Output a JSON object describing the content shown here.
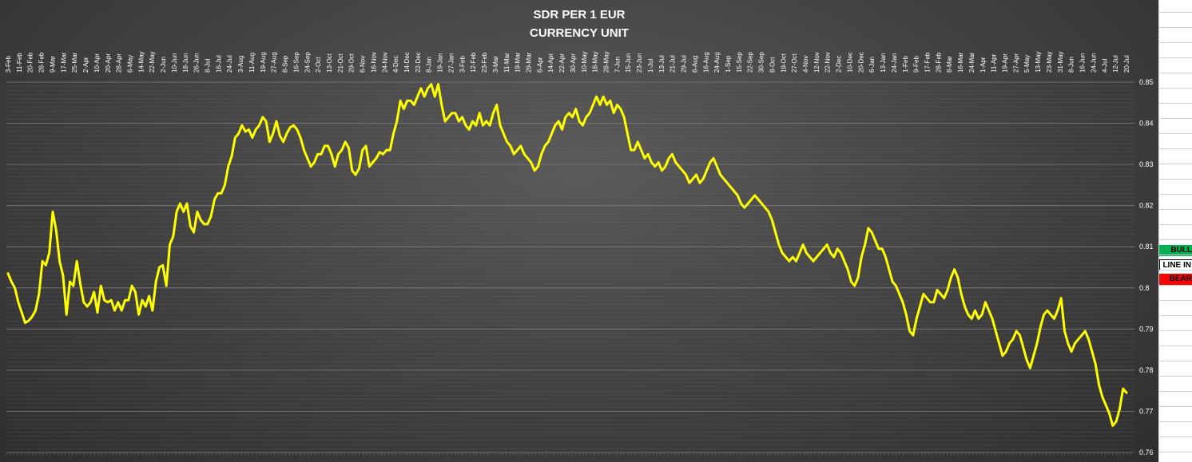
{
  "chart_data": {
    "type": "line",
    "title": "SDR PER 1 EUR",
    "subtitle": "CURRENCY UNIT",
    "xlabel": "",
    "ylabel": "",
    "ylim": [
      0.76,
      0.85
    ],
    "y_ticks": [
      "0.85",
      "0.84",
      "0.83",
      "0.82",
      "0.81",
      "0.8",
      "0.79",
      "0.78",
      "0.77",
      "0.76"
    ],
    "x_tick_labels": [
      "3-Feb",
      "11-Feb",
      "20-Feb",
      "28-Feb",
      "9-Mar",
      "17-Mar",
      "25-Mar",
      "2-Apr",
      "10-Apr",
      "20-Apr",
      "28-Apr",
      "6-May",
      "14-May",
      "22-May",
      "2-Jun",
      "10-Jun",
      "18-Jun",
      "26-Jun",
      "8-Jul",
      "16-Jul",
      "24-Jul",
      "3-Aug",
      "11-Aug",
      "19-Aug",
      "27-Aug",
      "8-Sep",
      "16-Sep",
      "24-Sep",
      "2-Oct",
      "13-Oct",
      "21-Oct",
      "29-Oct",
      "6-Nov",
      "16-Nov",
      "24-Nov",
      "4-Dec",
      "14-Dec",
      "22-Dec",
      "8-Jan",
      "19-Jan",
      "27-Jan",
      "3-Feb",
      "12-Feb",
      "23-Feb",
      "3-Mar",
      "11-Mar",
      "19-Mar",
      "29-Mar",
      "6-Apr",
      "14-Apr",
      "22-Apr",
      "30-Apr",
      "10-May",
      "18-May",
      "28-May",
      "7-Jun",
      "15-Jun",
      "23-Jun",
      "1-Jul",
      "13-Jul",
      "21-Jul",
      "29-Jul",
      "6-Aug",
      "16-Aug",
      "24-Aug",
      "1-Sep",
      "15-Sep",
      "22-Sep",
      "30-Sep",
      "8-Oct",
      "19-Oct",
      "27-Oct",
      "4-Nov",
      "12-Nov",
      "22-Nov",
      "2-Dec",
      "10-Dec",
      "20-Dec",
      "6-Jan",
      "13-Jan",
      "24-Jan",
      "1-Feb",
      "9-Feb",
      "17-Feb",
      "28-Feb",
      "8-Mar",
      "16-Mar",
      "24-Mar",
      "1-Apr",
      "11-Apr",
      "19-Apr",
      "27-Apr",
      "5-May",
      "13-May",
      "23-May",
      "31-May",
      "8-Jun",
      "16-Jun",
      "24-Jun",
      "4-Jul",
      "12-Jul",
      "20-Jul"
    ],
    "grid": true,
    "series": [
      {
        "color": "#ffff00",
        "values": [
          0.8035,
          0.8015,
          0.8,
          0.7965,
          0.794,
          0.7915,
          0.792,
          0.793,
          0.7945,
          0.7985,
          0.8065,
          0.8055,
          0.8085,
          0.8185,
          0.814,
          0.8065,
          0.803,
          0.7935,
          0.8015,
          0.8005,
          0.8065,
          0.801,
          0.7965,
          0.7955,
          0.7965,
          0.799,
          0.794,
          0.8005,
          0.797,
          0.7965,
          0.797,
          0.7945,
          0.7965,
          0.7945,
          0.797,
          0.797,
          0.8005,
          0.799,
          0.7935,
          0.797,
          0.7955,
          0.798,
          0.7945,
          0.8015,
          0.805,
          0.8055,
          0.8005,
          0.8105,
          0.8125,
          0.8185,
          0.8205,
          0.8185,
          0.8205,
          0.815,
          0.8135,
          0.8185,
          0.8165,
          0.8155,
          0.8155,
          0.8175,
          0.8215,
          0.823,
          0.823,
          0.825,
          0.8295,
          0.832,
          0.8365,
          0.8375,
          0.8395,
          0.838,
          0.8385,
          0.8365,
          0.8385,
          0.8395,
          0.8415,
          0.8405,
          0.8355,
          0.8375,
          0.8405,
          0.837,
          0.8355,
          0.8375,
          0.839,
          0.8395,
          0.8385,
          0.8365,
          0.8335,
          0.8315,
          0.8295,
          0.8305,
          0.8325,
          0.8325,
          0.8345,
          0.8345,
          0.8325,
          0.8295,
          0.8325,
          0.8335,
          0.8355,
          0.834,
          0.8285,
          0.8275,
          0.829,
          0.8335,
          0.8345,
          0.8295,
          0.8305,
          0.8315,
          0.833,
          0.8325,
          0.8335,
          0.8335,
          0.8375,
          0.8405,
          0.8455,
          0.8435,
          0.8455,
          0.8455,
          0.8445,
          0.8465,
          0.8485,
          0.8465,
          0.8485,
          0.8495,
          0.8465,
          0.8495,
          0.8445,
          0.8405,
          0.8415,
          0.8425,
          0.8425,
          0.8405,
          0.8415,
          0.8395,
          0.8385,
          0.8405,
          0.8395,
          0.8425,
          0.8395,
          0.8405,
          0.8395,
          0.8425,
          0.8445,
          0.8395,
          0.8375,
          0.8355,
          0.8345,
          0.8325,
          0.8335,
          0.8345,
          0.8325,
          0.8315,
          0.8305,
          0.8285,
          0.8295,
          0.8325,
          0.8345,
          0.8355,
          0.8375,
          0.8395,
          0.8405,
          0.8385,
          0.8415,
          0.8425,
          0.8415,
          0.8435,
          0.8405,
          0.8395,
          0.8415,
          0.8425,
          0.8445,
          0.8465,
          0.8445,
          0.8465,
          0.8445,
          0.8455,
          0.8425,
          0.8445,
          0.8435,
          0.8415,
          0.8375,
          0.8335,
          0.8335,
          0.8355,
          0.8335,
          0.8315,
          0.8325,
          0.8305,
          0.8295,
          0.8305,
          0.8285,
          0.8295,
          0.8315,
          0.8325,
          0.8305,
          0.8295,
          0.8285,
          0.8275,
          0.8255,
          0.8265,
          0.8275,
          0.8255,
          0.8265,
          0.8285,
          0.8305,
          0.8315,
          0.8295,
          0.8275,
          0.8265,
          0.8255,
          0.8245,
          0.8235,
          0.8225,
          0.8205,
          0.8195,
          0.8205,
          0.8215,
          0.8225,
          0.8215,
          0.8205,
          0.8195,
          0.8185,
          0.8165,
          0.8135,
          0.8105,
          0.8085,
          0.8075,
          0.8065,
          0.8075,
          0.8065,
          0.8085,
          0.8105,
          0.8085,
          0.8075,
          0.8065,
          0.8075,
          0.8085,
          0.8095,
          0.8105,
          0.8085,
          0.8075,
          0.8095,
          0.8085,
          0.8065,
          0.8045,
          0.8015,
          0.8005,
          0.8025,
          0.8075,
          0.8105,
          0.8145,
          0.8135,
          0.8115,
          0.8095,
          0.8095,
          0.8075,
          0.8045,
          0.8015,
          0.8005,
          0.7985,
          0.7965,
          0.7935,
          0.7895,
          0.7885,
          0.7925,
          0.7955,
          0.7985,
          0.7975,
          0.7965,
          0.7965,
          0.7995,
          0.7985,
          0.7975,
          0.7995,
          0.8025,
          0.8045,
          0.8025,
          0.7985,
          0.7955,
          0.7935,
          0.7925,
          0.7945,
          0.7925,
          0.7935,
          0.7965,
          0.7945,
          0.7925,
          0.7895,
          0.7865,
          0.7835,
          0.7845,
          0.7865,
          0.7875,
          0.7895,
          0.7885,
          0.7855,
          0.7825,
          0.7805,
          0.7835,
          0.7865,
          0.7905,
          0.7935,
          0.7945,
          0.7935,
          0.7925,
          0.7945,
          0.7975,
          0.7895,
          0.7865,
          0.7845,
          0.7865,
          0.7875,
          0.7885,
          0.7895,
          0.7875,
          0.7845,
          0.7815,
          0.7765,
          0.7735,
          0.7715,
          0.7695,
          0.7665,
          0.7675,
          0.7705,
          0.7755,
          0.7745
        ]
      }
    ],
    "legend": "right"
  },
  "legend_items": {
    "bull": "BULL",
    "line_in": "LINE IN",
    "bear": "BEAR"
  },
  "colors": {
    "line": "#ffff00",
    "bull": "#00b050",
    "bear": "#ff0000",
    "line_in": "#ffffff"
  }
}
